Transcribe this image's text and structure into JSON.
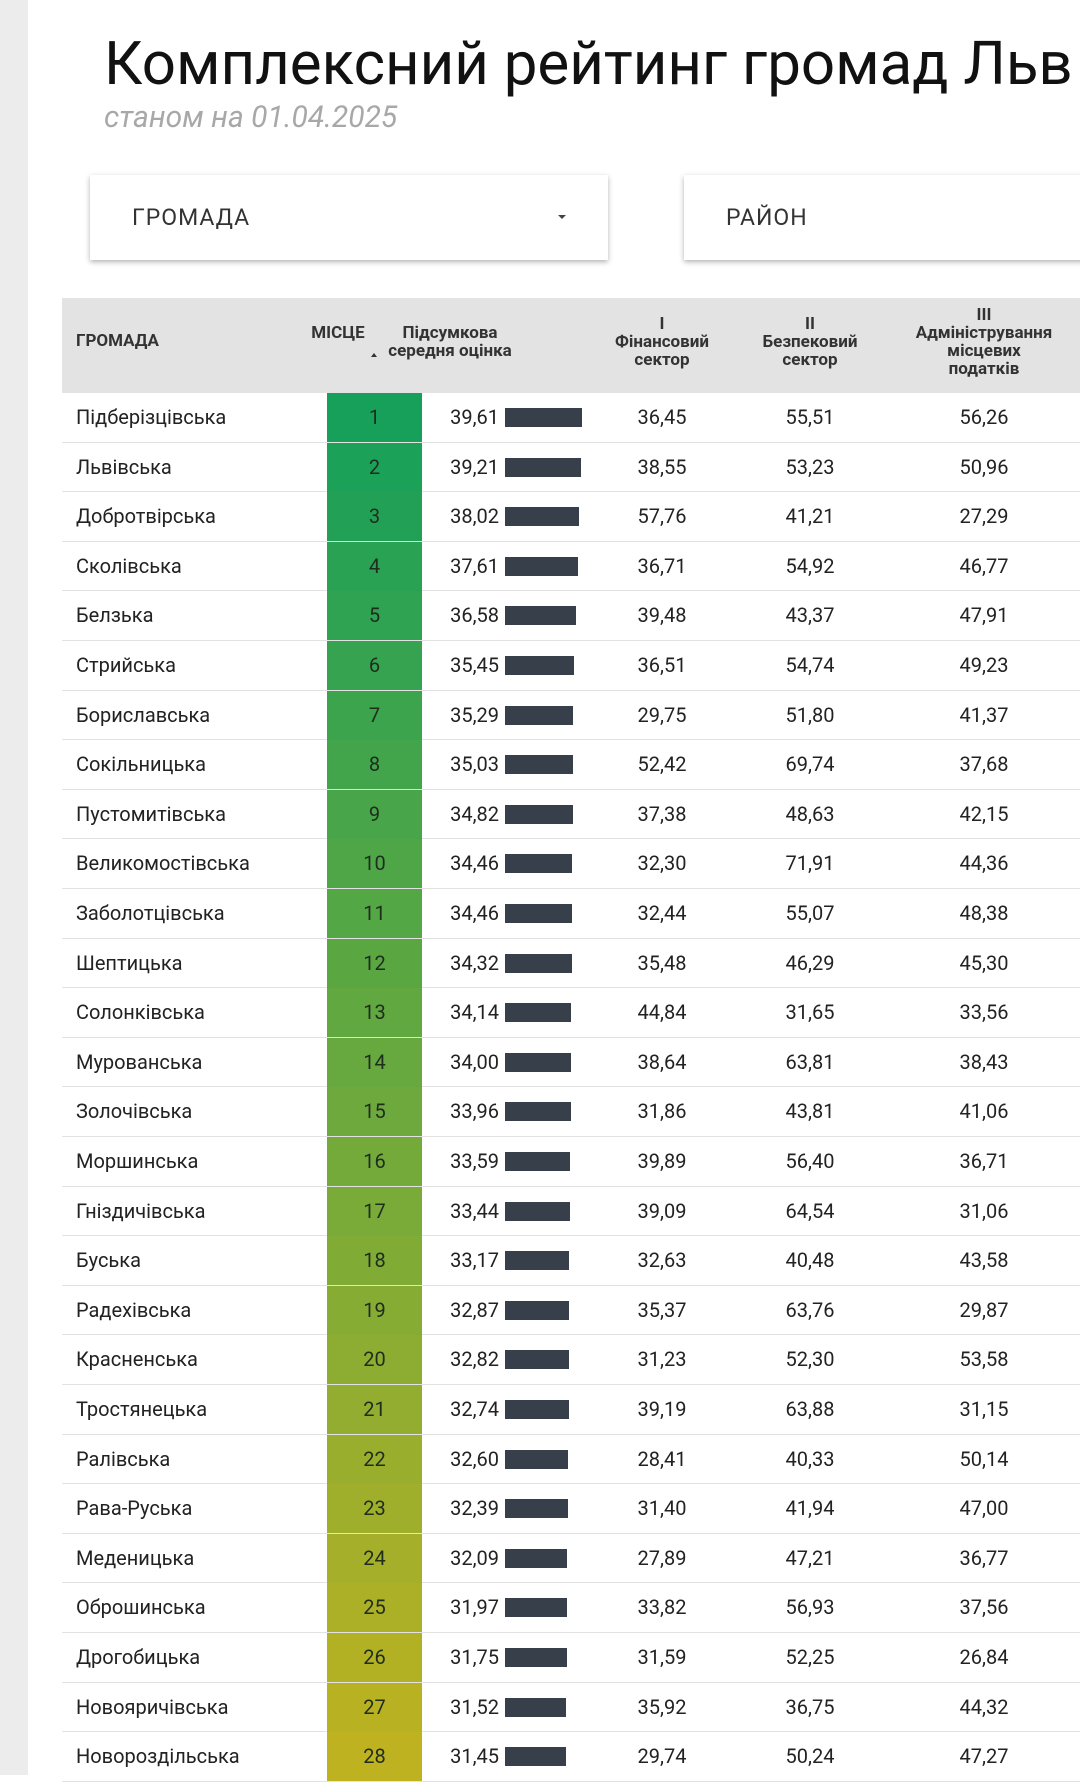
{
  "header": {
    "title": "Комплексний рейтинг громад Льв",
    "subtitle": "станом на 01.04.2025"
  },
  "filters": [
    "ГРОМАДА",
    "РАЙОН"
  ],
  "table": {
    "columns": [
      "ГРОМАДА",
      "МІСЦЕ",
      "Підсумкова\nсередня оцінка",
      "I\nФінансовий\nсектор",
      "II\nБезпековий\nсектор",
      "III\nАдміністрування\nмісцевих\nподатків"
    ],
    "rows": [
      {
        "name": "Підберізцівська",
        "place": 1,
        "score": 39.61,
        "score_label": "39,61",
        "fin": "36,45",
        "sec": "55,51",
        "adm": "56,26"
      },
      {
        "name": "Львівська",
        "place": 2,
        "score": 39.21,
        "score_label": "39,21",
        "fin": "38,55",
        "sec": "53,23",
        "adm": "50,96"
      },
      {
        "name": "Добротвірська",
        "place": 3,
        "score": 38.02,
        "score_label": "38,02",
        "fin": "57,76",
        "sec": "41,21",
        "adm": "27,29"
      },
      {
        "name": "Сколівська",
        "place": 4,
        "score": 37.61,
        "score_label": "37,61",
        "fin": "36,71",
        "sec": "54,92",
        "adm": "46,77"
      },
      {
        "name": "Белзька",
        "place": 5,
        "score": 36.58,
        "score_label": "36,58",
        "fin": "39,48",
        "sec": "43,37",
        "adm": "47,91"
      },
      {
        "name": "Стрийська",
        "place": 6,
        "score": 35.45,
        "score_label": "35,45",
        "fin": "36,51",
        "sec": "54,74",
        "adm": "49,23"
      },
      {
        "name": "Бориславська",
        "place": 7,
        "score": 35.29,
        "score_label": "35,29",
        "fin": "29,75",
        "sec": "51,80",
        "adm": "41,37"
      },
      {
        "name": "Сокільницька",
        "place": 8,
        "score": 35.03,
        "score_label": "35,03",
        "fin": "52,42",
        "sec": "69,74",
        "adm": "37,68"
      },
      {
        "name": "Пустомитівська",
        "place": 9,
        "score": 34.82,
        "score_label": "34,82",
        "fin": "37,38",
        "sec": "48,63",
        "adm": "42,15"
      },
      {
        "name": "Великомостівська",
        "place": 10,
        "score": 34.46,
        "score_label": "34,46",
        "fin": "32,30",
        "sec": "71,91",
        "adm": "44,36"
      },
      {
        "name": "Заболотцівська",
        "place": 11,
        "score": 34.46,
        "score_label": "34,46",
        "fin": "32,44",
        "sec": "55,07",
        "adm": "48,38"
      },
      {
        "name": "Шептицька",
        "place": 12,
        "score": 34.32,
        "score_label": "34,32",
        "fin": "35,48",
        "sec": "46,29",
        "adm": "45,30"
      },
      {
        "name": "Солонківська",
        "place": 13,
        "score": 34.14,
        "score_label": "34,14",
        "fin": "44,84",
        "sec": "31,65",
        "adm": "33,56"
      },
      {
        "name": "Мурованська",
        "place": 14,
        "score": 34.0,
        "score_label": "34,00",
        "fin": "38,64",
        "sec": "63,81",
        "adm": "38,43"
      },
      {
        "name": "Золочівська",
        "place": 15,
        "score": 33.96,
        "score_label": "33,96",
        "fin": "31,86",
        "sec": "43,81",
        "adm": "41,06"
      },
      {
        "name": "Моршинська",
        "place": 16,
        "score": 33.59,
        "score_label": "33,59",
        "fin": "39,89",
        "sec": "56,40",
        "adm": "36,71"
      },
      {
        "name": "Гніздичівська",
        "place": 17,
        "score": 33.44,
        "score_label": "33,44",
        "fin": "39,09",
        "sec": "64,54",
        "adm": "31,06"
      },
      {
        "name": "Буська",
        "place": 18,
        "score": 33.17,
        "score_label": "33,17",
        "fin": "32,63",
        "sec": "40,48",
        "adm": "43,58"
      },
      {
        "name": "Радехівська",
        "place": 19,
        "score": 32.87,
        "score_label": "32,87",
        "fin": "35,37",
        "sec": "63,76",
        "adm": "29,87"
      },
      {
        "name": "Красненська",
        "place": 20,
        "score": 32.82,
        "score_label": "32,82",
        "fin": "31,23",
        "sec": "52,30",
        "adm": "53,58"
      },
      {
        "name": "Тростянецька",
        "place": 21,
        "score": 32.74,
        "score_label": "32,74",
        "fin": "39,19",
        "sec": "63,88",
        "adm": "31,15"
      },
      {
        "name": "Ралівська",
        "place": 22,
        "score": 32.6,
        "score_label": "32,60",
        "fin": "28,41",
        "sec": "40,33",
        "adm": "50,14"
      },
      {
        "name": "Рава-Руська",
        "place": 23,
        "score": 32.39,
        "score_label": "32,39",
        "fin": "31,40",
        "sec": "41,94",
        "adm": "47,00"
      },
      {
        "name": "Меденицька",
        "place": 24,
        "score": 32.09,
        "score_label": "32,09",
        "fin": "27,89",
        "sec": "47,21",
        "adm": "36,77"
      },
      {
        "name": "Оброшинська",
        "place": 25,
        "score": 31.97,
        "score_label": "31,97",
        "fin": "33,82",
        "sec": "56,93",
        "adm": "37,56"
      },
      {
        "name": "Дрогобицька",
        "place": 26,
        "score": 31.75,
        "score_label": "31,75",
        "fin": "31,59",
        "sec": "52,25",
        "adm": "26,84"
      },
      {
        "name": "Новояричівська",
        "place": 27,
        "score": 31.52,
        "score_label": "31,52",
        "fin": "35,92",
        "sec": "36,75",
        "adm": "44,32"
      },
      {
        "name": "Новороздільська",
        "place": 28,
        "score": 31.45,
        "score_label": "31,45",
        "fin": "29,74",
        "sec": "50,24",
        "adm": "47,27"
      }
    ]
  }
}
